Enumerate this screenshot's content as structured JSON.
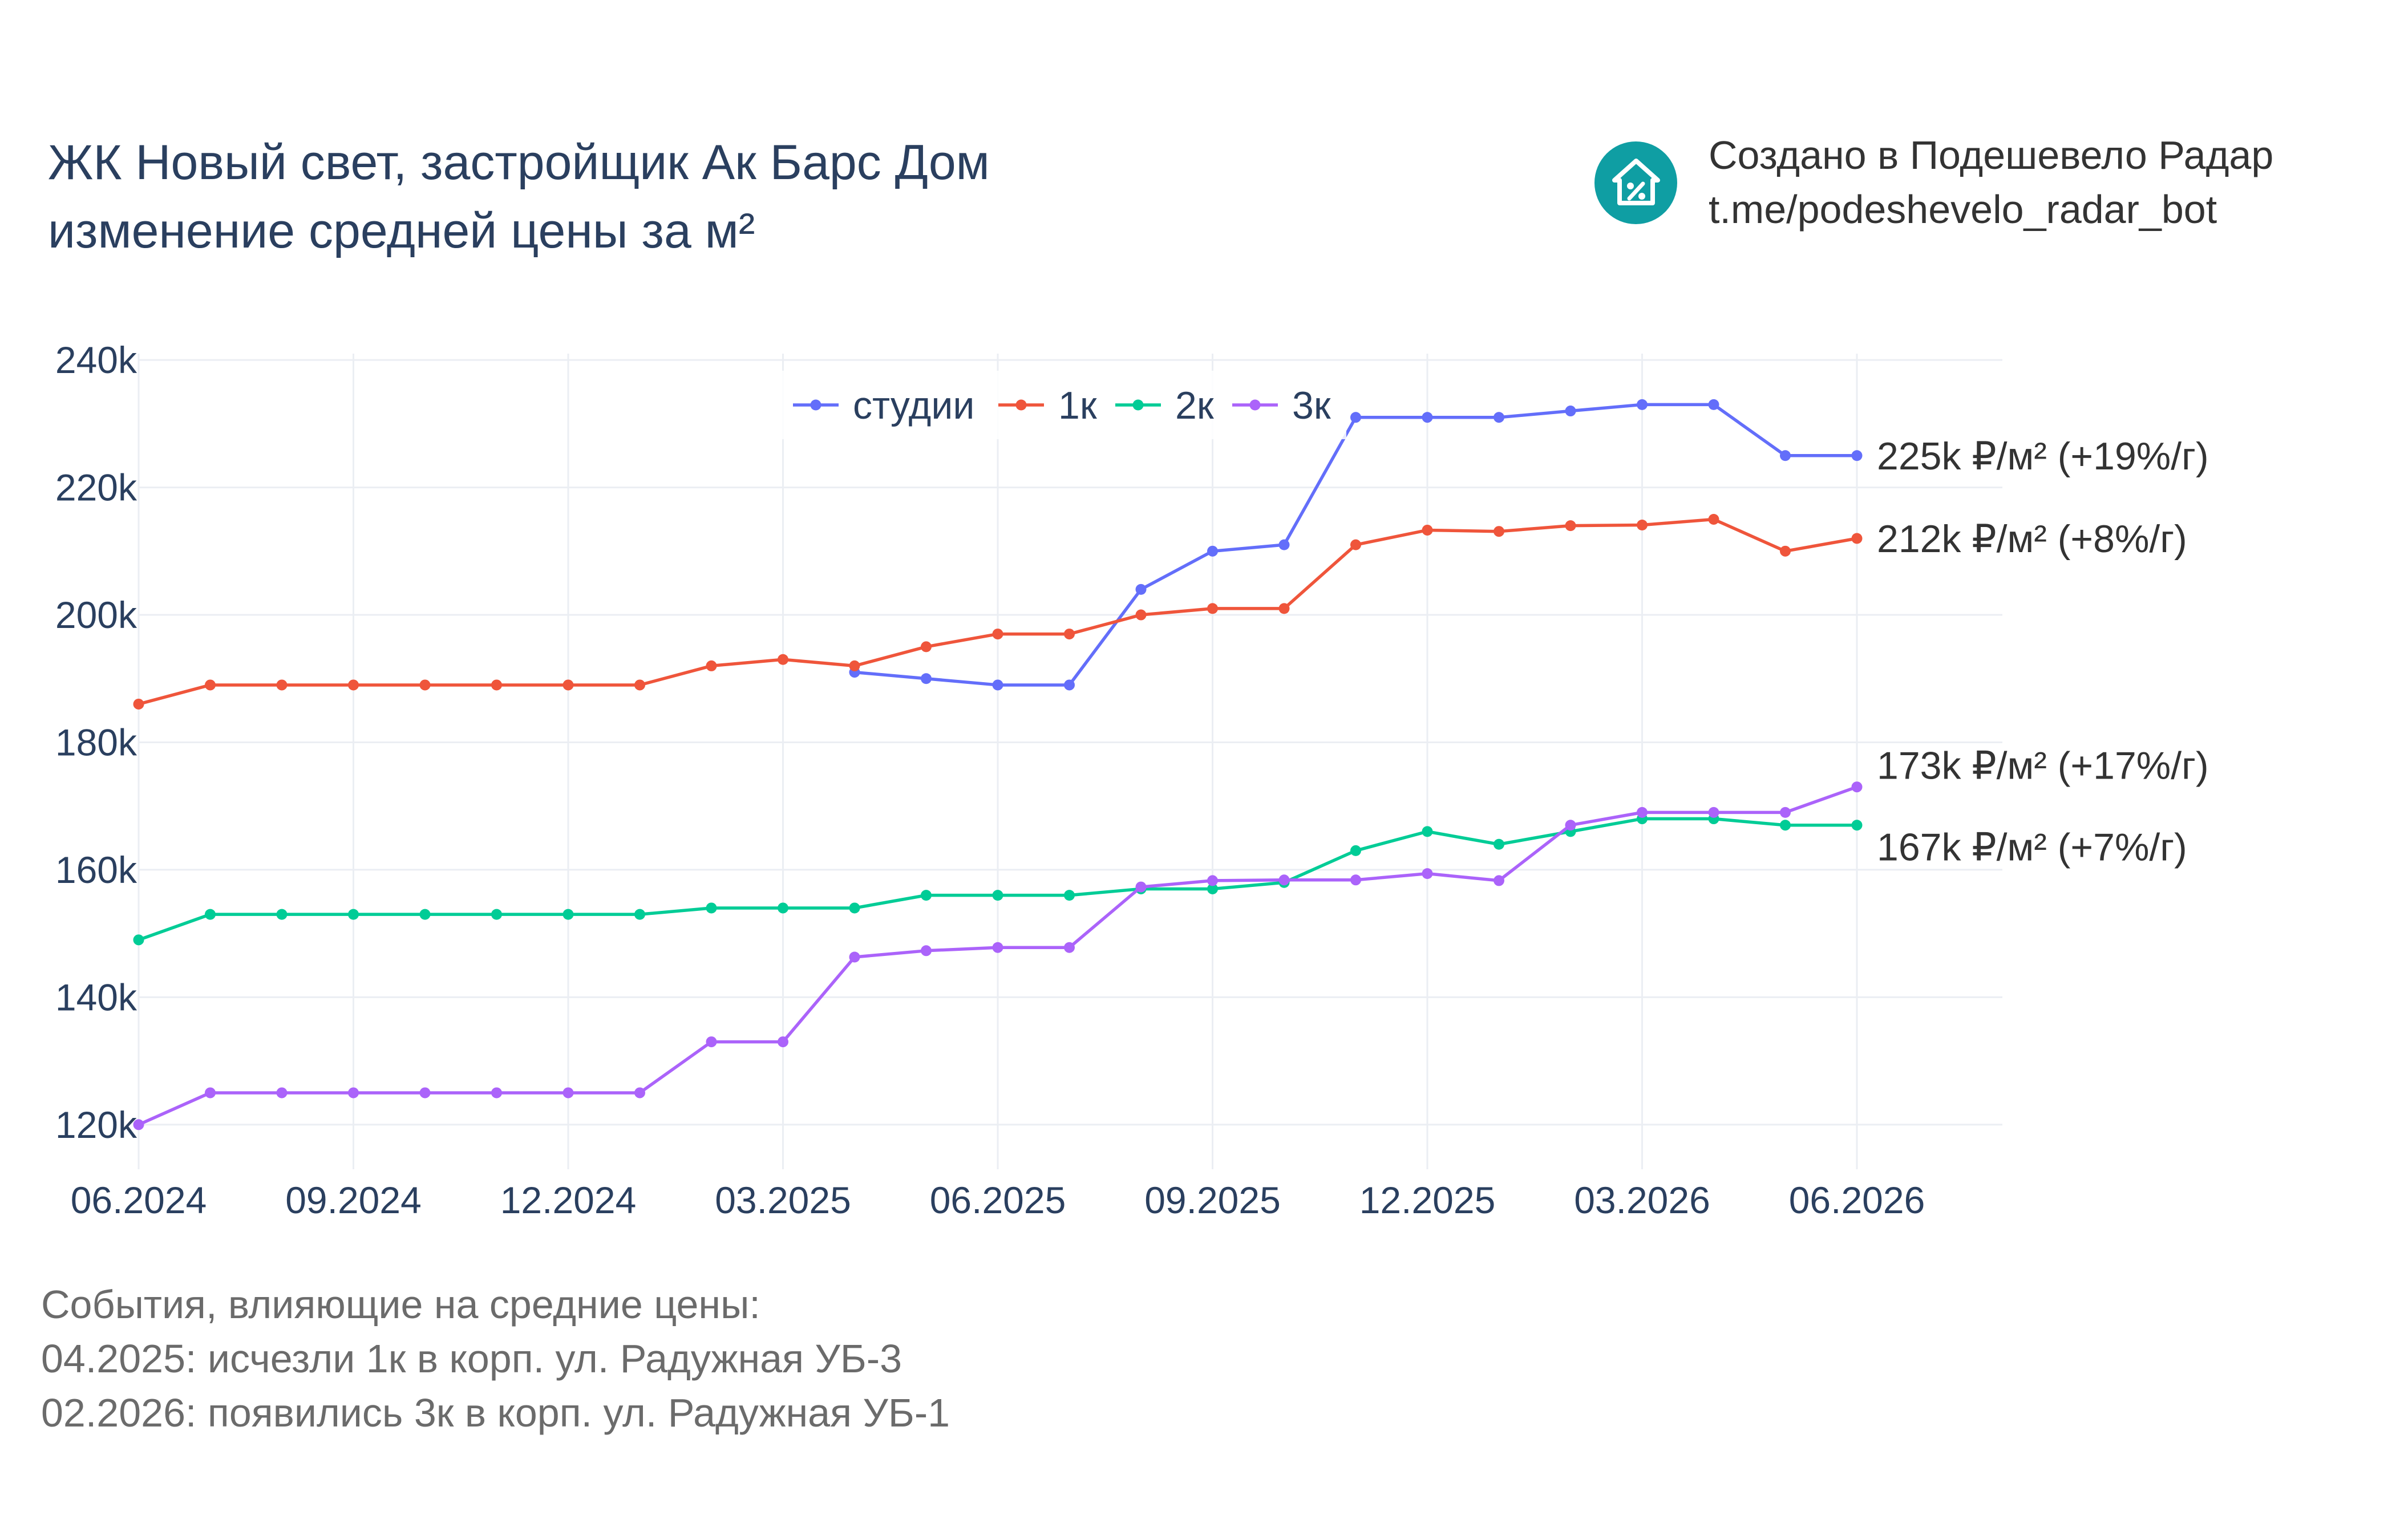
{
  "header": {
    "title_line1": "ЖК Новый свет, застройщик Ак Барс Дом",
    "title_line2": "изменение средней цены за м²"
  },
  "brand": {
    "line1": "Создано в Подешевело Радар",
    "line2": "t.me/podeshevelo_radar_bot",
    "logo_icon": "house-percent-icon",
    "logo_color": "#0f9ea3"
  },
  "events": {
    "heading": "События, влияющие на средние цены:",
    "items": [
      "04.2025: исчезли 1к в корп. ул. Радужная УБ-3",
      "02.2026: появились 3к в корп. ул. Радужная УБ-1"
    ]
  },
  "chart_data": {
    "type": "line",
    "x": [
      "2024-06",
      "2024-07",
      "2024-08",
      "2024-09",
      "2024-10",
      "2024-11",
      "2024-12",
      "2025-01",
      "2025-02",
      "2025-03",
      "2025-04",
      "2025-05",
      "2025-06",
      "2025-07",
      "2025-08",
      "2025-09",
      "2025-10",
      "2025-11",
      "2025-12",
      "2026-01",
      "2026-02",
      "2026-03",
      "2026-04",
      "2026-05",
      "2026-06"
    ],
    "x_ticks": [
      "06.2024",
      "09.2024",
      "12.2024",
      "03.2025",
      "06.2025",
      "09.2025",
      "12.2025",
      "03.2026",
      "06.2026"
    ],
    "y_ticks": [
      "120k",
      "140k",
      "160k",
      "180k",
      "200k",
      "220k",
      "240k"
    ],
    "y_tick_values": [
      120000,
      140000,
      160000,
      180000,
      200000,
      220000,
      240000
    ],
    "ylim": [
      113000,
      241000
    ],
    "grid": true,
    "legend_position": "top-center",
    "series": [
      {
        "name": "студии",
        "color": "#636efa",
        "values": [
          null,
          null,
          null,
          null,
          null,
          null,
          null,
          null,
          null,
          null,
          191000,
          190000,
          189000,
          189000,
          204000,
          210000,
          211000,
          231000,
          231000,
          231000,
          232000,
          233000,
          233000,
          225000,
          225000
        ],
        "end_label": "225k ₽/м² (+19%/г)"
      },
      {
        "name": "1к",
        "color": "#ef553b",
        "values": [
          186000,
          189000,
          189000,
          189000,
          189000,
          189000,
          189000,
          189000,
          192000,
          193000,
          192000,
          195000,
          197000,
          197000,
          200000,
          201000,
          201000,
          211000,
          213300,
          213100,
          214000,
          214100,
          215000,
          210000,
          212000
        ],
        "end_label": "212k ₽/м² (+8%/г)"
      },
      {
        "name": "2к",
        "color": "#00cc96",
        "values": [
          149000,
          153000,
          153000,
          153000,
          153000,
          153000,
          153000,
          153000,
          154000,
          154000,
          154000,
          156000,
          156000,
          156000,
          157000,
          157000,
          158000,
          163000,
          166000,
          164000,
          166000,
          168000,
          168000,
          167000,
          167000
        ],
        "end_label": "167k ₽/м² (+7%/г)"
      },
      {
        "name": "3к",
        "color": "#ab63fa",
        "values": [
          120000,
          125000,
          125000,
          125000,
          125000,
          125000,
          125000,
          125000,
          133000,
          133000,
          146300,
          147300,
          147800,
          147800,
          157300,
          158300,
          158400,
          158400,
          159400,
          158300,
          167000,
          169000,
          169000,
          169000,
          173000
        ],
        "end_label": "173k ₽/м² (+17%/г)"
      }
    ]
  }
}
